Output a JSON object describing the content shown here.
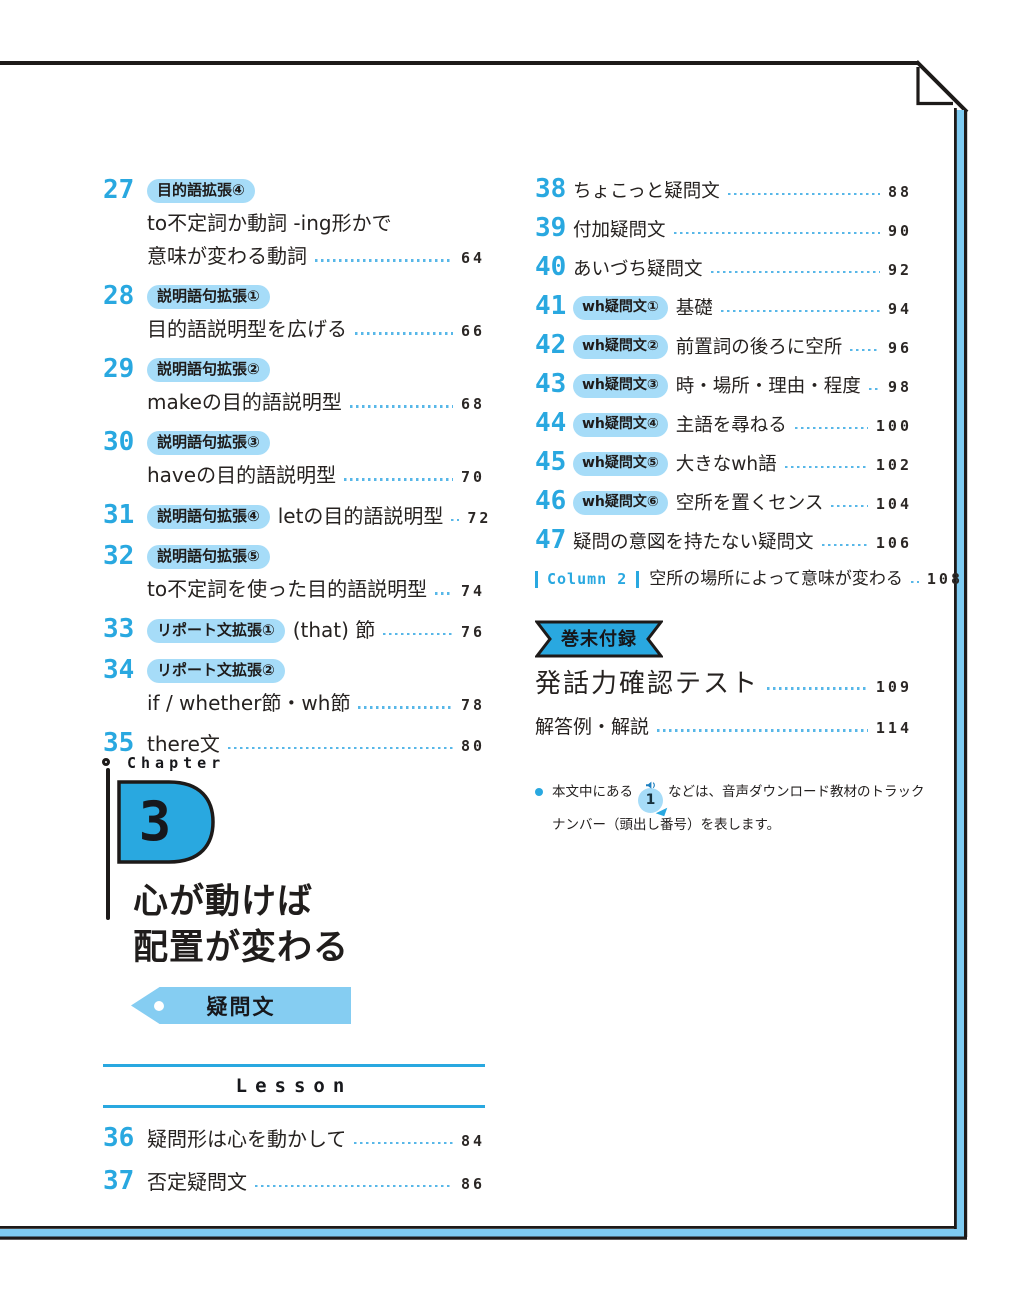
{
  "colors": {
    "accent": "#29a8e0",
    "badge_bg": "#a6dcf8",
    "tag_bg": "#85cdf2",
    "leader_dots": "#57b7e8",
    "text": "#262220",
    "border_stripe": "#7ecbf2"
  },
  "toc_left": [
    {
      "num": "27",
      "badge": "目的語拡張④",
      "lines": [
        "to不定詞か動詞 -ing形かで",
        "意味が変わる動詞"
      ],
      "page": "64"
    },
    {
      "num": "28",
      "badge": "説明語句拡張①",
      "lines": [
        "目的語説明型を広げる"
      ],
      "page": "66"
    },
    {
      "num": "29",
      "badge": "説明語句拡張②",
      "lines": [
        "makeの目的語説明型"
      ],
      "page": "68"
    },
    {
      "num": "30",
      "badge": "説明語句拡張③",
      "lines": [
        "haveの目的語説明型"
      ],
      "page": "70"
    },
    {
      "num": "31",
      "badge": "説明語句拡張④",
      "title": "letの目的語説明型",
      "page": "72"
    },
    {
      "num": "32",
      "badge": "説明語句拡張⑤",
      "lines": [
        "to不定詞を使った目的語説明型"
      ],
      "page": "74"
    },
    {
      "num": "33",
      "badge": "リポート文拡張①",
      "title": "(that) 節",
      "page": "76"
    },
    {
      "num": "34",
      "badge": "リポート文拡張②",
      "lines": [
        "if / whether節・wh節"
      ],
      "page": "78"
    },
    {
      "num": "35",
      "title": "there文",
      "page": "80"
    }
  ],
  "toc_right": [
    {
      "num": "38",
      "title": "ちょこっと疑問文",
      "page": "88"
    },
    {
      "num": "39",
      "title": "付加疑問文",
      "page": "90"
    },
    {
      "num": "40",
      "title": "あいづち疑問文",
      "page": "92"
    },
    {
      "num": "41",
      "badge": "wh疑問文①",
      "title": "基礎",
      "page": "94"
    },
    {
      "num": "42",
      "badge": "wh疑問文②",
      "title": "前置詞の後ろに空所",
      "page": "96"
    },
    {
      "num": "43",
      "badge": "wh疑問文③",
      "title": "時・場所・理由・程度",
      "page": "98"
    },
    {
      "num": "44",
      "badge": "wh疑問文④",
      "title": "主語を尋ねる",
      "page": "100"
    },
    {
      "num": "45",
      "badge": "wh疑問文⑤",
      "title": "大きなwh語",
      "page": "102"
    },
    {
      "num": "46",
      "badge": "wh疑問文⑥",
      "title": "空所を置くセンス",
      "page": "104"
    },
    {
      "num": "47",
      "title": "疑問の意図を持たない疑問文",
      "page": "106"
    }
  ],
  "column_note": {
    "label": "Column 2",
    "title": "空所の場所によって意味が変わる",
    "page": "108"
  },
  "appendix": {
    "ribbon": "巻末付録",
    "items": [
      {
        "title": "発話力確認テスト",
        "page": "109"
      },
      {
        "title": "解答例・解説",
        "page": "114"
      }
    ]
  },
  "chapter": {
    "label": "Chapter",
    "number": "3",
    "title_line1": "心が動けば",
    "title_line2": "配置が変わる",
    "tag": "疑問文",
    "lesson_label": "Lesson",
    "lessons": [
      {
        "num": "36",
        "title": "疑問形は心を動かして",
        "page": "84"
      },
      {
        "num": "37",
        "title": "否定疑問文",
        "page": "86"
      }
    ]
  },
  "footnote": {
    "pre": "本文中にある",
    "badge_num": "1",
    "post": "などは、音声ダウンロード教材のトラック",
    "line2": "ナンバー（頭出し番号）を表します。"
  }
}
